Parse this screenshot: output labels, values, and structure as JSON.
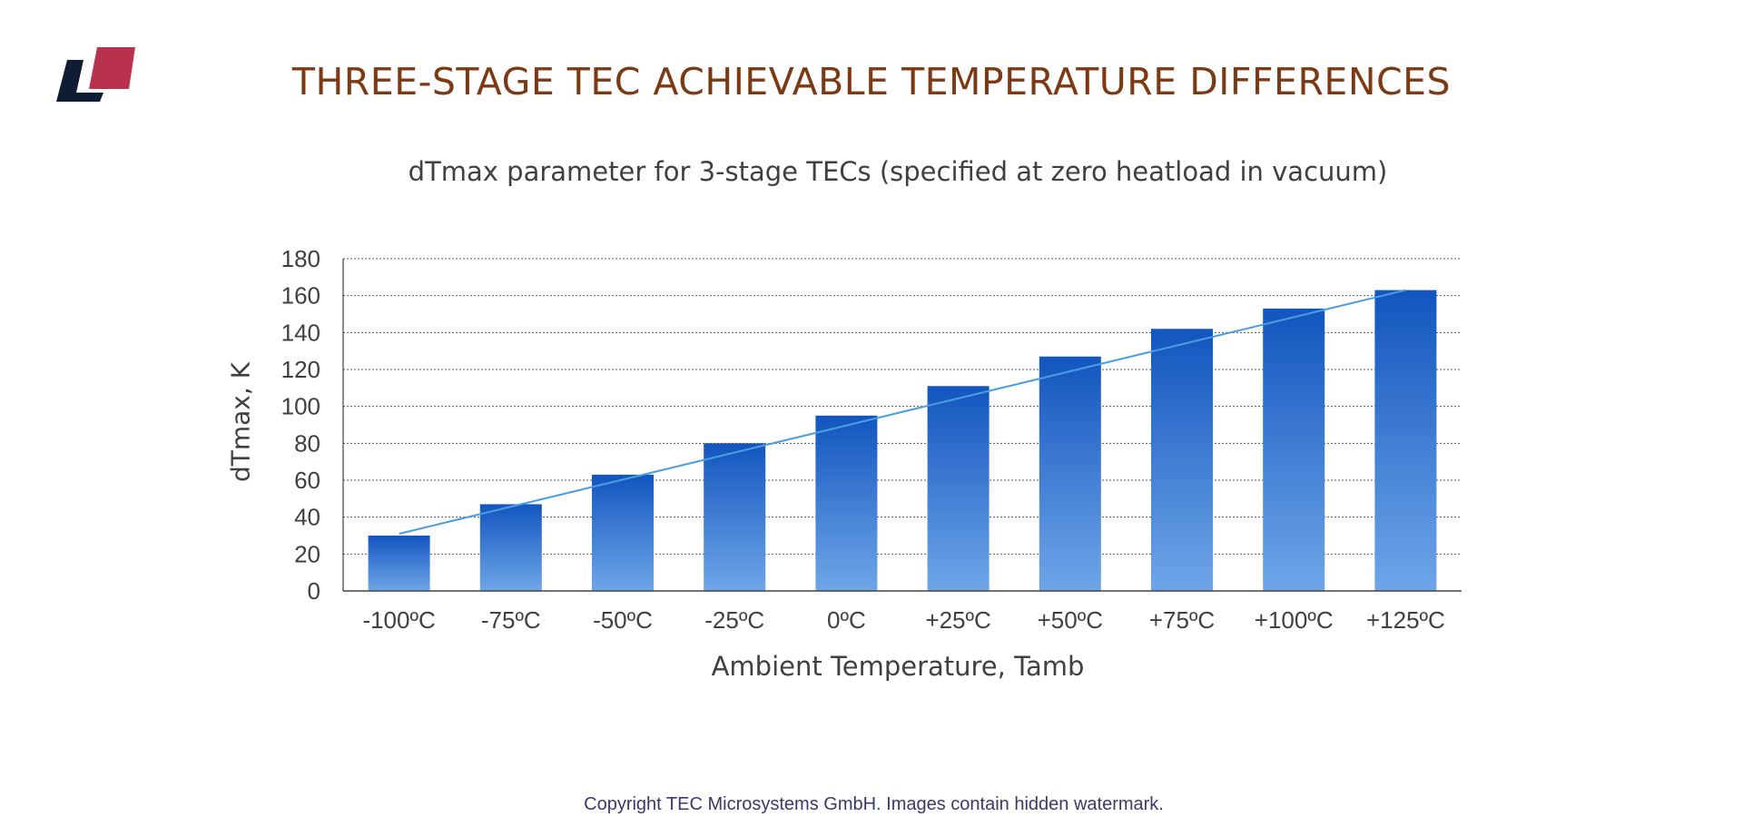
{
  "page": {
    "title": "THREE-STAGE TEC ACHIEVABLE TEMPERATURE DIFFERENCES",
    "copyright": "Copyright TEC Microsystems GmbH. Images contain hidden watermark."
  },
  "colors": {
    "logo_dark": "#0f1c33",
    "logo_red": "#b8324d",
    "title": "#7b3a14",
    "bar_top": "#1255bf",
    "bar_bottom": "#6fa6e8",
    "trend_line": "#4a9ee0",
    "grid": "#555555"
  },
  "chart_data": {
    "type": "bar",
    "title": "dTmax parameter for 3-stage TECs (specified at zero heatload in vacuum)",
    "xlabel": "Ambient Temperature, Tamb",
    "ylabel": "dTmax, K",
    "categories": [
      "-100ºC",
      "-75ºC",
      "-50ºC",
      "-25ºC",
      "0ºC",
      "+25ºC",
      "+50ºC",
      "+75ºC",
      "+100ºC",
      "+125ºC"
    ],
    "values": [
      30,
      47,
      63,
      80,
      95,
      111,
      127,
      142,
      153,
      163
    ],
    "trendline": [
      31,
      163
    ],
    "ylim": [
      0,
      180
    ],
    "yticks": [
      0,
      20,
      40,
      60,
      80,
      100,
      120,
      140,
      160,
      180
    ],
    "grid": "dotted horizontal",
    "legend": "none"
  }
}
